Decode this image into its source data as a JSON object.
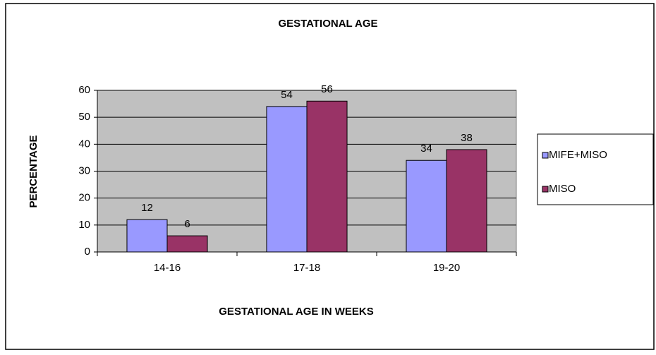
{
  "chart_data": {
    "type": "bar",
    "title": "GESTATIONAL AGE",
    "x_label": "GESTATIONAL AGE IN WEEKS",
    "y_label": "PERCENTAGE",
    "categories": [
      "14-16",
      "17-18",
      "19-20"
    ],
    "series": [
      {
        "name": "MIFE+MISO",
        "color": "#9999ff",
        "values": [
          12,
          54,
          34
        ]
      },
      {
        "name": "MISO",
        "color": "#993366",
        "values": [
          6,
          56,
          38
        ]
      }
    ],
    "ylim": [
      0,
      60
    ],
    "yticks": [
      0,
      10,
      20,
      30,
      40,
      50,
      60
    ],
    "grid": true,
    "legend": "right"
  }
}
